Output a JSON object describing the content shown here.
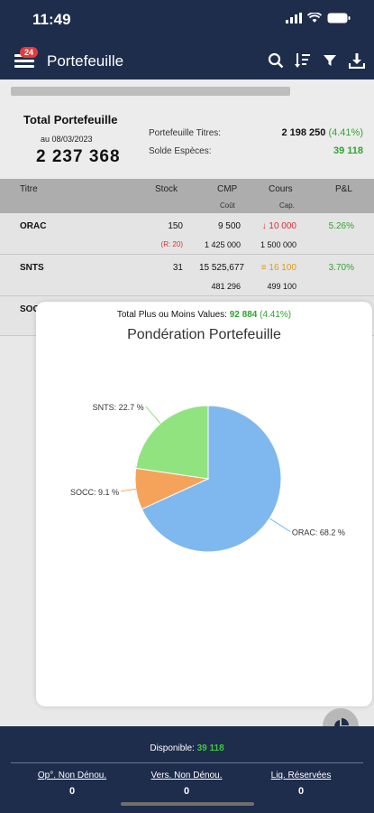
{
  "status": {
    "time": "11:49"
  },
  "header": {
    "title": "Portefeuille",
    "badge": "24",
    "icons": [
      "search-icon",
      "sort-icon",
      "filter-icon",
      "download-icon"
    ]
  },
  "summary": {
    "title": "Total Portefeuille",
    "date": "au 08/03/2023",
    "total": "2 237 368",
    "titres_label": "Portefeuille Titres:",
    "titres_value": "2 198 250",
    "titres_pct": "(4.41%)",
    "especes_label": "Solde Espèces:",
    "especes_value": "39 118"
  },
  "table": {
    "headers": {
      "titre": "Titre",
      "stock": "Stock",
      "cmp": "CMP",
      "cmp_sub": "Coût",
      "cours": "Cours",
      "cours_sub": "Cap.",
      "pl": "P&L"
    },
    "rows": [
      {
        "titre": "ORAC",
        "stock": "150",
        "stock_sub": "(R: 20)",
        "cmp": "9 500",
        "cout": "1 425 000",
        "cours_icon": "↓",
        "cours": "10 000",
        "cap": "1 500 000",
        "pl": "5.26%"
      },
      {
        "titre": "SNTS",
        "stock": "31",
        "cmp": "15 525,677",
        "cout": "481 296",
        "cours_icon": "≡",
        "cours": "16 100",
        "cap": "499 100",
        "pl": "3.70%"
      },
      {
        "titre": "SOCC"
      }
    ]
  },
  "popup": {
    "total_label": "Total Plus ou Moins Values:",
    "total_value": "92 884",
    "total_pct": "(4.41%)",
    "title": "Pondération Portefeuille"
  },
  "chart_data": {
    "type": "pie",
    "title": "Pondération Portefeuille",
    "labels": [
      "ORAC: 68.2 %",
      "SOCC: 9.1 %",
      "SNTS: 22.7 %"
    ],
    "categories": [
      "ORAC",
      "SOCC",
      "SNTS"
    ],
    "values": [
      68.2,
      9.1,
      22.7
    ],
    "colors": [
      "#7fb8ef",
      "#f5a35a",
      "#91e37f"
    ]
  },
  "footer": {
    "dispo_label": "Disponible:",
    "dispo_value": "39 118",
    "cols": [
      {
        "label": "Op°. Non Dénou.",
        "value": "0"
      },
      {
        "label": "Vers. Non Dénou.",
        "value": "0"
      },
      {
        "label": "Liq. Réservées",
        "value": "0"
      }
    ]
  }
}
